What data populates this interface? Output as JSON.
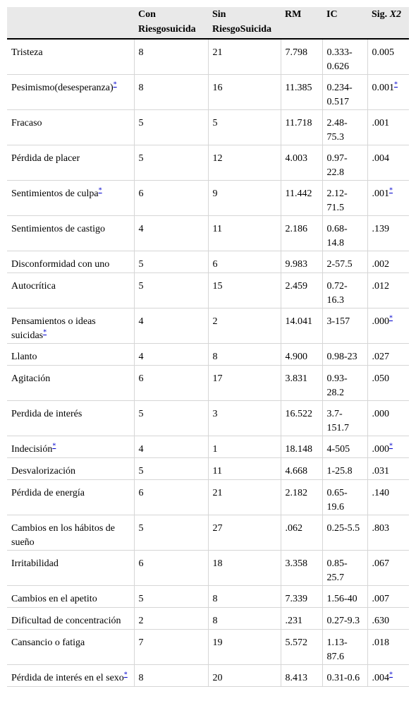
{
  "table": {
    "header": {
      "con": "Con Riesgosuicida",
      "sin": "Sin RiesgoSuicida",
      "rm": "RM",
      "ic": "IC",
      "sig": {
        "text": "Sig.",
        "symbol": "X2"
      }
    },
    "rows": [
      {
        "label": "Tristeza",
        "con": "8",
        "sin": "21",
        "rm": "7.798",
        "ic": "0.333-0.626",
        "sig": "0.005"
      },
      {
        "label": "Pesimismo(desesperanza)",
        "label_note": "*",
        "con": "8",
        "sin": "16",
        "rm": "11.385",
        "ic": "0.234-0.517",
        "sig": "0.001",
        "sig_note": "*"
      },
      {
        "label": "Fracaso",
        "con": "5",
        "sin": "5",
        "rm": "11.718",
        "ic": "2.48-75.3",
        "sig": ".001"
      },
      {
        "label": "Pérdida de placer",
        "con": "5",
        "sin": "12",
        "rm": "4.003",
        "ic": "0.97-22.8",
        "sig": ".004"
      },
      {
        "label": "Sentimientos de culpa",
        "label_note": "*",
        "con": "6",
        "sin": "9",
        "rm": "11.442",
        "ic": "2.12-71.5",
        "sig": ".001",
        "sig_note": "*"
      },
      {
        "label": "Sentimientos de castigo",
        "con": "4",
        "sin": "11",
        "rm": "2.186",
        "ic": "0.68-14.8",
        "sig": ".139"
      },
      {
        "label": "Disconformidad con uno",
        "con": "5",
        "sin": "6",
        "rm": "9.983",
        "ic": "2-57.5",
        "sig": ".002"
      },
      {
        "label": "Autocrítica",
        "con": "5",
        "sin": "15",
        "rm": "2.459",
        "ic": "0.72-16.3",
        "sig": ".012"
      },
      {
        "label": "Pensamientos o ideas suicidas",
        "label_note": "*",
        "con": "4",
        "sin": "2",
        "rm": "14.041",
        "ic": "3-157",
        "sig": ".000",
        "sig_note": "*"
      },
      {
        "label": "Llanto",
        "con": "4",
        "sin": "8",
        "rm": "4.900",
        "ic": "0.98-23",
        "sig": ".027"
      },
      {
        "label": "Agitación",
        "con": "6",
        "sin": "17",
        "rm": "3.831",
        "ic": "0.93-28.2",
        "sig": ".050"
      },
      {
        "label": "Perdida de interés",
        "con": "5",
        "sin": "3",
        "rm": "16.522",
        "ic": "3.7-151.7",
        "sig": ".000"
      },
      {
        "label": "Indecisión",
        "label_note": "*",
        "con": "4",
        "sin": "1",
        "rm": "18.148",
        "ic": "4-505",
        "sig": ".000",
        "sig_note": "*"
      },
      {
        "label": "Desvalorización",
        "con": "5",
        "sin": "11",
        "rm": "4.668",
        "ic": "1-25.8",
        "sig": ".031"
      },
      {
        "label": "Pérdida de energía",
        "con": "6",
        "sin": "21",
        "rm": "2.182",
        "ic": "0.65-19.6",
        "sig": ".140"
      },
      {
        "label": "Cambios en los hábitos de sueño",
        "con": "5",
        "sin": "27",
        "rm": ".062",
        "ic": "0.25-5.5",
        "sig": ".803"
      },
      {
        "label": "Irritabilidad",
        "con": "6",
        "sin": "18",
        "rm": "3.358",
        "ic": "0.85-25.7",
        "sig": ".067"
      },
      {
        "label": "Cambios en el apetito",
        "con": "5",
        "sin": "8",
        "rm": "7.339",
        "ic": "1.56-40",
        "sig": ".007"
      },
      {
        "label": "Dificultad de concentración",
        "con": "2",
        "sin": "8",
        "rm": ".231",
        "ic": "0.27-9.3",
        "sig": ".630"
      },
      {
        "label": "Cansancio o fatiga",
        "con": "7",
        "sin": "19",
        "rm": "5.572",
        "ic": "1.13-87.6",
        "sig": ".018"
      },
      {
        "label": "Pérdida de interés en el sexo",
        "label_note": "*",
        "con": "8",
        "sin": "20",
        "rm": "8.413",
        "ic": "0.31-0.6",
        "sig": ".004",
        "sig_note": "*"
      }
    ]
  }
}
